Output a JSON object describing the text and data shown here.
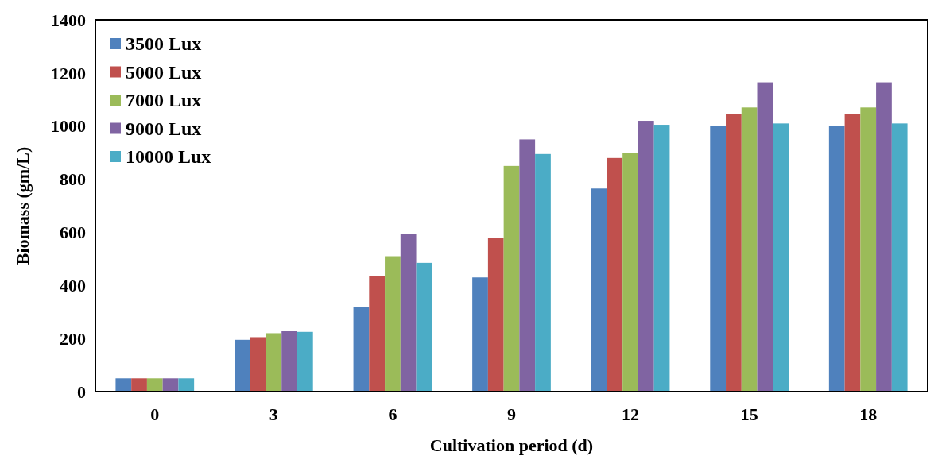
{
  "chart_data": {
    "type": "bar",
    "xlabel": "Cultivation period (d)",
    "ylabel": "Biomass (gm/L)",
    "categories": [
      "0",
      "3",
      "6",
      "9",
      "12",
      "15",
      "18"
    ],
    "series": [
      {
        "name": "3500 Lux",
        "color": "#4f81bd",
        "values": [
          50,
          195,
          320,
          430,
          765,
          1000,
          1000
        ]
      },
      {
        "name": "5000 Lux",
        "color": "#c0504d",
        "values": [
          50,
          205,
          435,
          580,
          880,
          1045,
          1045
        ]
      },
      {
        "name": "7000 Lux",
        "color": "#9bbb59",
        "values": [
          50,
          220,
          510,
          850,
          900,
          1070,
          1070
        ]
      },
      {
        "name": "9000 Lux",
        "color": "#8064a2",
        "values": [
          50,
          230,
          595,
          950,
          1020,
          1165,
          1165
        ]
      },
      {
        "name": "10000 Lux",
        "color": "#4bacc6",
        "values": [
          50,
          225,
          485,
          895,
          1005,
          1010,
          1010
        ]
      }
    ],
    "ylim": [
      0,
      1400
    ],
    "yticks": [
      0,
      200,
      400,
      600,
      800,
      1000,
      1200,
      1400
    ],
    "grid": false,
    "legend": "top left"
  }
}
